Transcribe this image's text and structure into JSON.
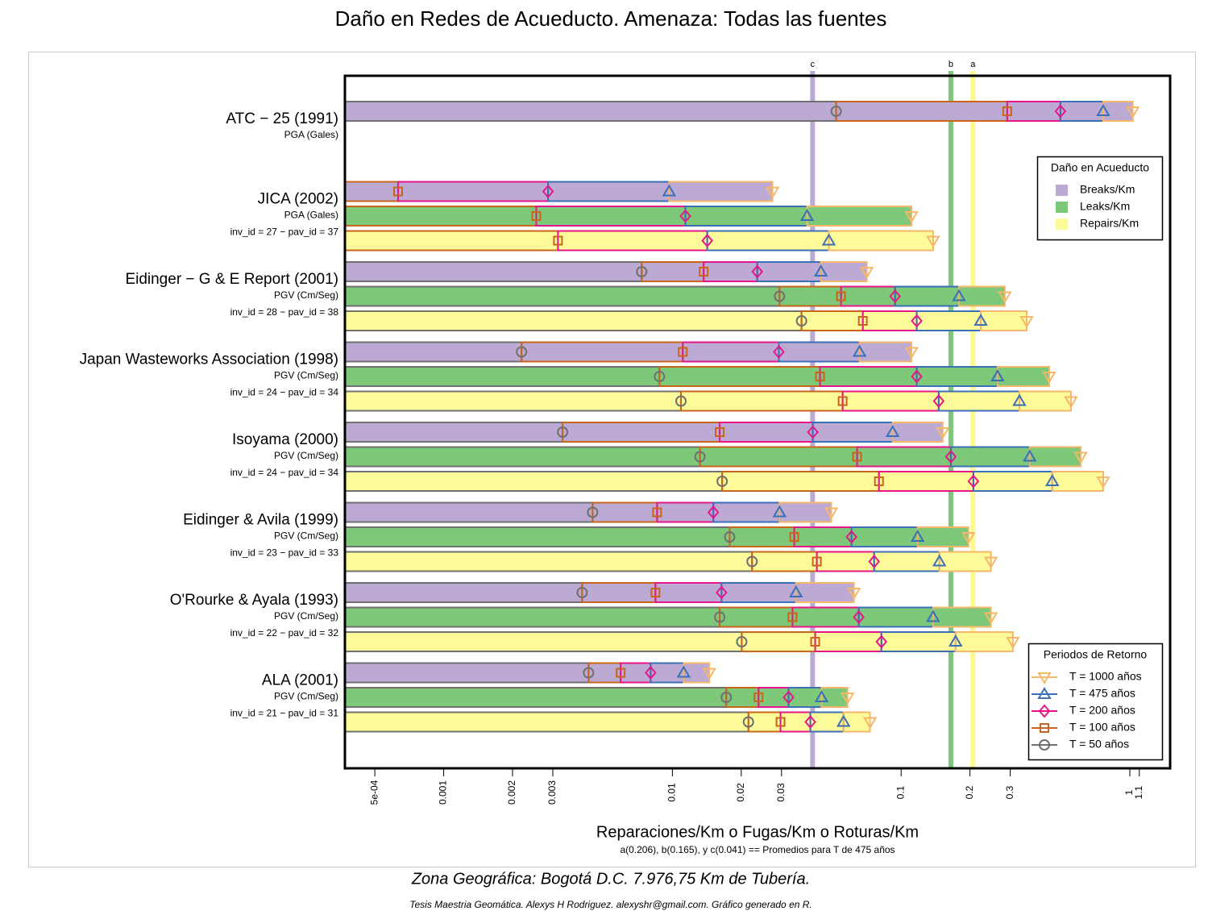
{
  "chart_data": {
    "type": "bar",
    "title": "Daño en Redes de Acueducto. Amenaza: Todas las fuentes",
    "x_label": "Reparaciones/Km o Fugas/Km o Roturas/Km",
    "note": "a(0.206), b(0.165), y c(0.041) == Promedios para T de 475 años",
    "caption": "Zona Geográfica: Bogotá D.C. 7.976,75 Km de Tubería.",
    "credit": "Tesis Maestria Geomática. Alexys H Rodriguez. alexyshr@gmail.com. Gráfico generado en R.",
    "log_x": true,
    "xlim": [
      0.00037,
      1.5
    ],
    "xticks": [
      {
        "value": 0.0005,
        "label": "5e-04"
      },
      0.001,
      0.002,
      0.003,
      0.01,
      0.02,
      0.03,
      0.1,
      0.2,
      0.3,
      1,
      1.1
    ],
    "ref_lines": [
      {
        "label": "c",
        "value": 0.041,
        "color": "#bba9d6"
      },
      {
        "label": "b",
        "value": 0.165,
        "color": "#7cc77a"
      },
      {
        "label": "a",
        "value": 0.206,
        "color": "#fdf98e"
      }
    ],
    "legend_title": "Daño en Acueducto",
    "series": [
      {
        "name": "Breaks/Km",
        "color": "#bcaad4"
      },
      {
        "name": "Leaks/Km",
        "color": "#7ec87a"
      },
      {
        "name": "Repairs/Km",
        "color": "#fdfa9a"
      }
    ],
    "periods_title": "Periodos de Retorno",
    "periods": [
      {
        "name": "T = 50 años",
        "color": "#707070",
        "marker": "circle"
      },
      {
        "name": "T = 100 años",
        "color": "#c8651b",
        "marker": "square"
      },
      {
        "name": "T = 200 años",
        "color": "#e7158a",
        "marker": "diamond"
      },
      {
        "name": "T = 475 años",
        "color": "#3b6fb6",
        "marker": "triangle-up"
      },
      {
        "name": "T = 1000 años",
        "color": "#f5b76a",
        "marker": "triangle-down"
      }
    ],
    "groups": [
      {
        "label": "ATC − 25 (1991)",
        "measure": "PGA (Gales)",
        "ids": null,
        "rows": [
          {
            "series": 0,
            "values": [
              0.052,
              0.291,
              0.497,
              0.765,
              1.03
            ]
          }
        ]
      },
      {
        "label": "JICA (2002)",
        "measure": "PGA (Gales)",
        "ids": "inv_id = 27 − pav_id = 37",
        "rows": [
          {
            "series": 0,
            "values": [
              null,
              0.000632,
              0.00286,
              0.00968,
              0.0274
            ]
          },
          {
            "series": 1,
            "values": [
              null,
              0.00254,
              0.0114,
              0.0388,
              0.111
            ]
          },
          {
            "series": 2,
            "values": [
              null,
              0.00316,
              0.0142,
              0.0483,
              0.138
            ]
          }
        ]
      },
      {
        "label": "Eidinger − G & E Report (2001)",
        "measure": "PGV (Cm/Seg)",
        "ids": "inv_id = 28 − pav_id = 38",
        "rows": [
          {
            "series": 0,
            "values": [
              0.00734,
              0.0137,
              0.0235,
              0.0446,
              0.0708
            ]
          },
          {
            "series": 1,
            "values": [
              0.0294,
              0.0546,
              0.0941,
              0.179,
              0.284
            ]
          },
          {
            "series": 2,
            "values": [
              0.0367,
              0.068,
              0.117,
              0.223,
              0.354
            ]
          }
        ]
      },
      {
        "label": "Japan Wasteworks Association (1998)",
        "measure": "PGV (Cm/Seg)",
        "ids": "inv_id = 24 − pav_id = 34",
        "rows": [
          {
            "series": 0,
            "values": [
              0.00219,
              0.0111,
              0.0292,
              0.0658,
              0.111
            ]
          },
          {
            "series": 1,
            "values": [
              0.00878,
              0.0442,
              0.117,
              0.264,
              0.444
            ]
          },
          {
            "series": 2,
            "values": [
              0.0109,
              0.0555,
              0.146,
              0.329,
              0.553
            ]
          }
        ]
      },
      {
        "label": "Isoyama (2000)",
        "measure": "PGV (Cm/Seg)",
        "ids": "inv_id = 24 − pav_id = 34",
        "rows": [
          {
            "series": 0,
            "values": [
              0.00331,
              0.0161,
              0.0411,
              0.0918,
              0.152
            ]
          },
          {
            "series": 1,
            "values": [
              0.0132,
              0.0642,
              0.165,
              0.365,
              0.61
            ]
          },
          {
            "series": 2,
            "values": [
              0.0165,
              0.08,
              0.207,
              0.458,
              0.765
            ]
          }
        ]
      },
      {
        "label": "Eidinger & Avila (1999)",
        "measure": "PGV (Cm/Seg)",
        "ids": "inv_id = 23 − pav_id = 33",
        "rows": [
          {
            "series": 0,
            "values": [
              0.00448,
              0.00857,
              0.0151,
              0.0294,
              0.0495
            ]
          },
          {
            "series": 1,
            "values": [
              0.0178,
              0.0341,
              0.0607,
              0.118,
              0.197
            ]
          },
          {
            "series": 2,
            "values": [
              0.0223,
              0.0428,
              0.0762,
              0.147,
              0.247
            ]
          }
        ]
      },
      {
        "label": "O'Rourke & Ayala (1993)",
        "measure": "PGV (Cm/Seg)",
        "ids": "inv_id = 22 − pav_id = 32",
        "rows": [
          {
            "series": 0,
            "values": [
              0.00403,
              0.00843,
              0.0164,
              0.0347,
              0.0622
            ]
          },
          {
            "series": 1,
            "values": [
              0.0161,
              0.0335,
              0.0653,
              0.138,
              0.247
            ]
          },
          {
            "series": 2,
            "values": [
              0.0201,
              0.0421,
              0.082,
              0.173,
              0.308
            ]
          }
        ]
      },
      {
        "label": "ALA (2001)",
        "measure": "PGV (Cm/Seg)",
        "ids": "inv_id = 21 − pav_id = 31",
        "rows": [
          {
            "series": 0,
            "values": [
              0.0043,
              0.00594,
              0.00803,
              0.0112,
              0.0145
            ]
          },
          {
            "series": 1,
            "values": [
              0.0172,
              0.0238,
              0.0322,
              0.0449,
              0.0583
            ]
          },
          {
            "series": 2,
            "values": [
              0.0215,
              0.0297,
              0.0401,
              0.056,
              0.0731
            ]
          }
        ]
      }
    ]
  }
}
